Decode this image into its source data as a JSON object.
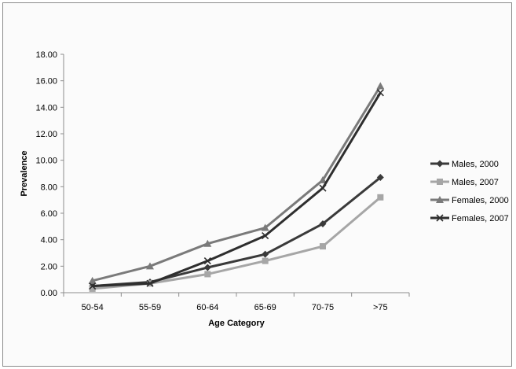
{
  "chart_data": {
    "type": "line",
    "title": "",
    "xlabel": "Age Category",
    "ylabel": "Prevalence",
    "categories": [
      "50-54",
      "55-59",
      "60-64",
      "65-69",
      "70-75",
      ">75"
    ],
    "ylim": [
      0,
      18
    ],
    "yticks": [
      "0.00",
      "2.00",
      "4.00",
      "6.00",
      "8.00",
      "10.00",
      "12.00",
      "14.00",
      "16.00",
      "18.00"
    ],
    "grid": false,
    "legend_position": "right",
    "series": [
      {
        "name": "Males, 2000",
        "values": [
          0.5,
          0.8,
          1.9,
          2.9,
          5.2,
          8.7
        ],
        "color": "#3a3a3a",
        "marker": "diamond"
      },
      {
        "name": "Males, 2007",
        "values": [
          0.3,
          0.7,
          1.4,
          2.4,
          3.5,
          7.2
        ],
        "color": "#a6a6a6",
        "marker": "square"
      },
      {
        "name": "Females, 2000",
        "values": [
          0.9,
          2.0,
          3.7,
          4.9,
          8.5,
          15.6
        ],
        "color": "#7a7a7a",
        "marker": "triangle"
      },
      {
        "name": "Females, 2007",
        "values": [
          0.5,
          0.7,
          2.4,
          4.3,
          7.9,
          15.1
        ],
        "color": "#2e2e2e",
        "marker": "cross"
      }
    ]
  }
}
